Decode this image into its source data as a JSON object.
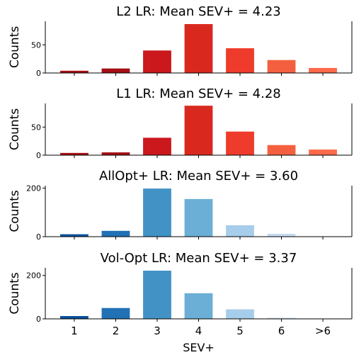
{
  "chart_data": [
    {
      "type": "bar",
      "title": "L2 LR: Mean SEV+ = 4.23",
      "ylabel": "Counts",
      "xlabel": "",
      "categories": [
        "1",
        "2",
        "3",
        "4",
        "5",
        "6",
        ">6"
      ],
      "values": [
        4,
        8,
        40,
        87,
        44,
        23,
        9
      ],
      "ylim": [
        0,
        92
      ],
      "yticks": [
        0,
        50
      ],
      "colors": [
        "#a50f15",
        "#a50f15",
        "#cb181d",
        "#d9291f",
        "#ef3b2c",
        "#f4603f",
        "#fb6a4a"
      ]
    },
    {
      "type": "bar",
      "title": "L1 LR: Mean SEV+ = 4.28",
      "ylabel": "Counts",
      "xlabel": "",
      "categories": [
        "1",
        "2",
        "3",
        "4",
        "5",
        "6",
        ">6"
      ],
      "values": [
        4,
        5,
        31,
        88,
        42,
        18,
        10
      ],
      "ylim": [
        0,
        92
      ],
      "yticks": [
        0,
        50
      ],
      "colors": [
        "#a50f15",
        "#a50f15",
        "#cb181d",
        "#d9291f",
        "#ef3b2c",
        "#f4603f",
        "#fb6a4a"
      ]
    },
    {
      "type": "bar",
      "title": "AllOpt+ LR: Mean SEV+ = 3.60",
      "ylabel": "Counts",
      "xlabel": "",
      "categories": [
        "1",
        "2",
        "3",
        "4",
        "5",
        "6",
        ">6"
      ],
      "values": [
        10,
        24,
        198,
        155,
        47,
        12,
        0
      ],
      "ylim": [
        0,
        210
      ],
      "yticks": [
        0,
        200
      ],
      "colors": [
        "#08519c",
        "#2171b5",
        "#4292c6",
        "#6baed6",
        "#a6cdea",
        "#c6dbef",
        "#deebf7"
      ]
    },
    {
      "type": "bar",
      "title": "Vol-Opt LR: Mean SEV+ = 3.37",
      "ylabel": "Counts",
      "xlabel": "SEV+",
      "categories": [
        "1",
        "2",
        "3",
        "4",
        "5",
        "6",
        ">6"
      ],
      "values": [
        13,
        50,
        222,
        118,
        44,
        5,
        0
      ],
      "ylim": [
        0,
        235
      ],
      "yticks": [
        0,
        200
      ],
      "colors": [
        "#08519c",
        "#2171b5",
        "#4292c6",
        "#6baed6",
        "#a6cdea",
        "#c6dbef",
        "#deebf7"
      ]
    }
  ]
}
